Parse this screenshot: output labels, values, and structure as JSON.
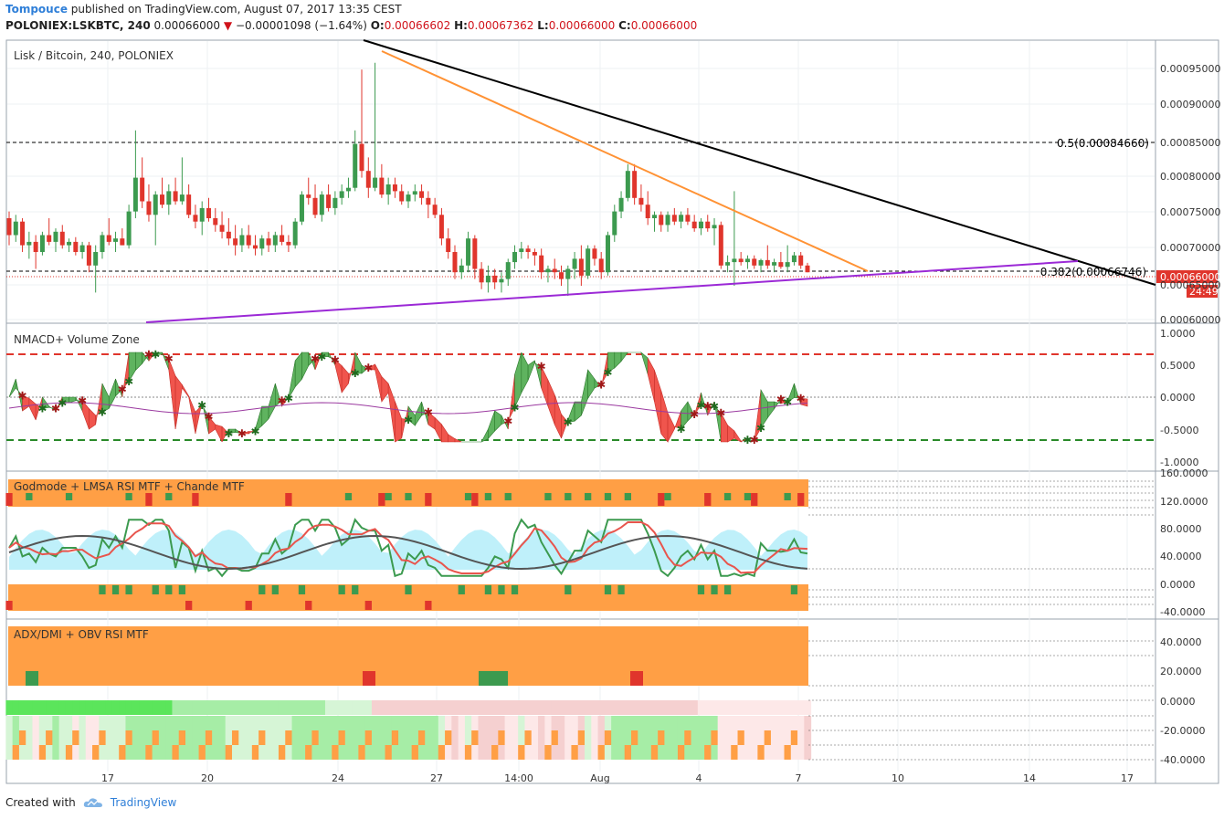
{
  "header": {
    "user": "Tompouce",
    "published": " published on TradingView.com, August 07, 2017 13:35 CEST",
    "symbol": "POLONIEX:LSKBTC, 240",
    "last": "0.00066000",
    "arrow": "▼",
    "change": "−0.00001098 (−1.64%)",
    "o_label": "O:",
    "o": "0.00066602",
    "h_label": "H:",
    "h": "0.00067362",
    "l_label": "L:",
    "l": "0.00066000",
    "c_label": "C:",
    "c": "0.00066000"
  },
  "footer": {
    "created": "Created with",
    "brand": "TradingView"
  },
  "colors": {
    "up": "#3c9a4f",
    "down": "#e0352c",
    "orange": "#ff9234",
    "purple": "#9b29d6",
    "black": "#000000",
    "lightgreen": "#8fdc8f",
    "cyan": "#a8eaf5",
    "price_tag": "#e0352c"
  },
  "x_axis": {
    "labels": [
      "17",
      "20",
      "24",
      "27",
      "14:00",
      "Aug",
      "4",
      "7",
      "10",
      "14",
      "17"
    ]
  },
  "panes": [
    {
      "title": "Lisk / Bitcoin, 240, POLONIEX",
      "y_ticks": [
        "0.00095000",
        "0.00090000",
        "0.00085000",
        "0.00080000",
        "0.00075000",
        "0.00070000",
        "0.00065000",
        "0.00060000"
      ],
      "fib_50": "0.5(0.00084660)",
      "fib_382": "0.382(0.00066746)",
      "price_tag": "0.00066000",
      "countdown": "24:49"
    },
    {
      "title": "NMACD+ Volume Zone",
      "y_ticks": [
        "1.0000",
        "0.5000",
        "0.0000",
        "-0.5000",
        "-1.0000"
      ]
    },
    {
      "title": "Godmode + LMSA RSI MTF + Chande MTF",
      "y_ticks": [
        "160.0000",
        "120.0000",
        "80.0000",
        "40.0000",
        "0.0000",
        "-40.0000"
      ]
    },
    {
      "title": "ADX/DMI + OBV RSI MTF",
      "y_ticks": [
        "40.0000",
        "20.0000",
        "0.0000",
        "-20.0000",
        "-40.0000"
      ]
    }
  ],
  "chart_data": {
    "type": "candlestick",
    "title": "Lisk / Bitcoin, 240, POLONIEX",
    "x_range": [
      "Jul 14",
      "Aug 18"
    ],
    "ylim": [
      0.00059,
      0.00099
    ],
    "candles": [
      [
        0.00074,
        0.00075,
        0.0007,
        0.000715
      ],
      [
        0.000715,
        0.000745,
        0.000705,
        0.000735
      ],
      [
        0.000735,
        0.00074,
        0.00069,
        0.0007
      ],
      [
        0.0007,
        0.00072,
        0.00068,
        0.000705
      ],
      [
        0.000705,
        0.000715,
        0.000665,
        0.00069
      ],
      [
        0.00069,
        0.00072,
        0.000685,
        0.000715
      ],
      [
        0.000715,
        0.00074,
        0.0007,
        0.000705
      ],
      [
        0.000705,
        0.000725,
        0.00069,
        0.00072
      ],
      [
        0.00072,
        0.00073,
        0.000695,
        0.0007
      ],
      [
        0.0007,
        0.00071,
        0.00069,
        0.000705
      ],
      [
        0.000705,
        0.000712,
        0.000685,
        0.00069
      ],
      [
        0.00069,
        0.000705,
        0.00068,
        0.0007
      ],
      [
        0.0007,
        0.000705,
        0.00066,
        0.00067
      ],
      [
        0.00067,
        0.0007,
        0.00063,
        0.00069
      ],
      [
        0.00069,
        0.00072,
        0.00068,
        0.000715
      ],
      [
        0.000715,
        0.00074,
        0.0007,
        0.000705
      ],
      [
        0.000705,
        0.00072,
        0.00069,
        0.00071
      ],
      [
        0.00071,
        0.000725,
        0.0007,
        0.0007
      ],
      [
        0.0007,
        0.00076,
        0.000695,
        0.00075
      ],
      [
        0.00075,
        0.00087,
        0.00074,
        0.0008
      ],
      [
        0.0008,
        0.00083,
        0.000755,
        0.000765
      ],
      [
        0.000765,
        0.00079,
        0.000735,
        0.000745
      ],
      [
        0.000745,
        0.00078,
        0.0007,
        0.000775
      ],
      [
        0.000775,
        0.0008,
        0.000755,
        0.00076
      ],
      [
        0.00076,
        0.00079,
        0.000745,
        0.00078
      ],
      [
        0.00078,
        0.0008,
        0.00076,
        0.000765
      ],
      [
        0.000765,
        0.00083,
        0.00076,
        0.000775
      ],
      [
        0.000775,
        0.00079,
        0.00074,
        0.000745
      ],
      [
        0.000745,
        0.00076,
        0.000725,
        0.000735
      ],
      [
        0.000735,
        0.000765,
        0.000715,
        0.000755
      ],
      [
        0.000755,
        0.00077,
        0.000735,
        0.00074
      ],
      [
        0.00074,
        0.000755,
        0.00072,
        0.00073
      ],
      [
        0.00073,
        0.00075,
        0.00071,
        0.00072
      ],
      [
        0.00072,
        0.00074,
        0.0007,
        0.00071
      ],
      [
        0.00071,
        0.00073,
        0.000685,
        0.0007
      ],
      [
        0.0007,
        0.000725,
        0.00069,
        0.000715
      ],
      [
        0.000715,
        0.00073,
        0.000695,
        0.0007
      ],
      [
        0.0007,
        0.000715,
        0.000685,
        0.000695
      ],
      [
        0.000695,
        0.000715,
        0.000685,
        0.00071
      ],
      [
        0.00071,
        0.00072,
        0.00069,
        0.0007
      ],
      [
        0.0007,
        0.00072,
        0.00069,
        0.000715
      ],
      [
        0.000715,
        0.00073,
        0.0007,
        0.000705
      ],
      [
        0.000705,
        0.000715,
        0.00069,
        0.0007
      ],
      [
        0.0007,
        0.00074,
        0.000695,
        0.000735
      ],
      [
        0.000735,
        0.00078,
        0.00073,
        0.000775
      ],
      [
        0.000775,
        0.0008,
        0.00076,
        0.00077
      ],
      [
        0.00077,
        0.00079,
        0.00074,
        0.000745
      ],
      [
        0.000745,
        0.00078,
        0.000735,
        0.000775
      ],
      [
        0.000775,
        0.00079,
        0.00075,
        0.000755
      ],
      [
        0.000755,
        0.00078,
        0.000745,
        0.00077
      ],
      [
        0.00077,
        0.00079,
        0.00076,
        0.00078
      ],
      [
        0.00078,
        0.0008,
        0.00077,
        0.000785
      ],
      [
        0.000785,
        0.00087,
        0.00078,
        0.00085
      ],
      [
        0.00085,
        0.00096,
        0.0008,
        0.00081
      ],
      [
        0.00081,
        0.00083,
        0.00077,
        0.000785
      ],
      [
        0.000785,
        0.00097,
        0.00078,
        0.0008
      ],
      [
        0.0008,
        0.00082,
        0.00077,
        0.000775
      ],
      [
        0.000775,
        0.0008,
        0.00076,
        0.00079
      ],
      [
        0.00079,
        0.0008,
        0.00077,
        0.00078
      ],
      [
        0.00078,
        0.00079,
        0.00076,
        0.000765
      ],
      [
        0.000765,
        0.00078,
        0.000755,
        0.000775
      ],
      [
        0.000775,
        0.00079,
        0.000765,
        0.00078
      ],
      [
        0.00078,
        0.00079,
        0.00076,
        0.00077
      ],
      [
        0.00077,
        0.00078,
        0.00074,
        0.00076
      ],
      [
        0.00076,
        0.00077,
        0.00074,
        0.000745
      ],
      [
        0.000745,
        0.000755,
        0.0007,
        0.00071
      ],
      [
        0.00071,
        0.000725,
        0.00068,
        0.00069
      ],
      [
        0.00069,
        0.0007,
        0.00065,
        0.00066
      ],
      [
        0.00066,
        0.00068,
        0.00065,
        0.00067
      ],
      [
        0.00067,
        0.00072,
        0.00066,
        0.00071
      ],
      [
        0.00071,
        0.000715,
        0.00065,
        0.000665
      ],
      [
        0.000665,
        0.000675,
        0.000635,
        0.000645
      ],
      [
        0.000645,
        0.00067,
        0.00063,
        0.000655
      ],
      [
        0.000655,
        0.000665,
        0.000635,
        0.000645
      ],
      [
        0.000645,
        0.00066,
        0.00063,
        0.00065
      ],
      [
        0.00065,
        0.00068,
        0.00064,
        0.000675
      ],
      [
        0.000675,
        0.0007,
        0.000665,
        0.00069
      ],
      [
        0.00069,
        0.000705,
        0.00068,
        0.000695
      ],
      [
        0.000695,
        0.0007,
        0.00068,
        0.00069
      ],
      [
        0.00069,
        0.000695,
        0.00067,
        0.000685
      ],
      [
        0.000685,
        0.000695,
        0.00065,
        0.00066
      ],
      [
        0.00066,
        0.00067,
        0.000645,
        0.000665
      ],
      [
        0.000665,
        0.00068,
        0.00065,
        0.00066
      ],
      [
        0.00066,
        0.00067,
        0.00064,
        0.00065
      ],
      [
        0.00065,
        0.00067,
        0.000625,
        0.000665
      ],
      [
        0.000665,
        0.00069,
        0.00065,
        0.00068
      ],
      [
        0.00068,
        0.0007,
        0.00064,
        0.000655
      ],
      [
        0.000655,
        0.0007,
        0.00065,
        0.000695
      ],
      [
        0.000695,
        0.0007,
        0.00067,
        0.00068
      ],
      [
        0.00068,
        0.00069,
        0.00065,
        0.00066
      ],
      [
        0.00066,
        0.00072,
        0.000655,
        0.000715
      ],
      [
        0.000715,
        0.00076,
        0.000705,
        0.00075
      ],
      [
        0.00075,
        0.00078,
        0.00074,
        0.00077
      ],
      [
        0.00077,
        0.00082,
        0.000765,
        0.00081
      ],
      [
        0.00081,
        0.00082,
        0.00076,
        0.00077
      ],
      [
        0.00077,
        0.00079,
        0.00075,
        0.00076
      ],
      [
        0.00076,
        0.00078,
        0.00073,
        0.00074
      ],
      [
        0.00074,
        0.00075,
        0.00072,
        0.000745
      ],
      [
        0.000745,
        0.00075,
        0.00072,
        0.00073
      ],
      [
        0.00073,
        0.00075,
        0.00072,
        0.000745
      ],
      [
        0.000745,
        0.000755,
        0.00073,
        0.000735
      ],
      [
        0.000735,
        0.00075,
        0.000725,
        0.000745
      ],
      [
        0.000745,
        0.000755,
        0.00073,
        0.000735
      ],
      [
        0.000735,
        0.000745,
        0.00072,
        0.000725
      ],
      [
        0.000725,
        0.00074,
        0.000715,
        0.000735
      ],
      [
        0.000735,
        0.000745,
        0.00072,
        0.000725
      ],
      [
        0.000725,
        0.00074,
        0.0007,
        0.00073
      ],
      [
        0.00073,
        0.000735,
        0.000665,
        0.00067
      ],
      [
        0.00067,
        0.000685,
        0.00066,
        0.000675
      ],
      [
        0.000675,
        0.00078,
        0.00064,
        0.00068
      ],
      [
        0.00068,
        0.00069,
        0.00067,
        0.000675
      ],
      [
        0.000675,
        0.000685,
        0.000665,
        0.00068
      ],
      [
        0.00068,
        0.000685,
        0.000665,
        0.00067
      ],
      [
        0.00067,
        0.00068,
        0.00066,
        0.000678
      ],
      [
        0.000678,
        0.0007,
        0.000665,
        0.00067
      ],
      [
        0.00067,
        0.00068,
        0.00066,
        0.000675
      ],
      [
        0.000675,
        0.00069,
        0.000665,
        0.000668
      ],
      [
        0.000668,
        0.0007,
        0.00066,
        0.000675
      ],
      [
        0.000675,
        0.00069,
        0.00067,
        0.000685
      ],
      [
        0.000685,
        0.00069,
        0.000665,
        0.00067
      ],
      [
        0.00067,
        0.000674,
        0.00066,
        0.00066
      ]
    ],
    "fib_levels": [
      {
        "label": "0.5",
        "value": 0.0008466
      },
      {
        "label": "0.382",
        "value": 0.00066746
      }
    ],
    "last_price": 0.00066
  }
}
